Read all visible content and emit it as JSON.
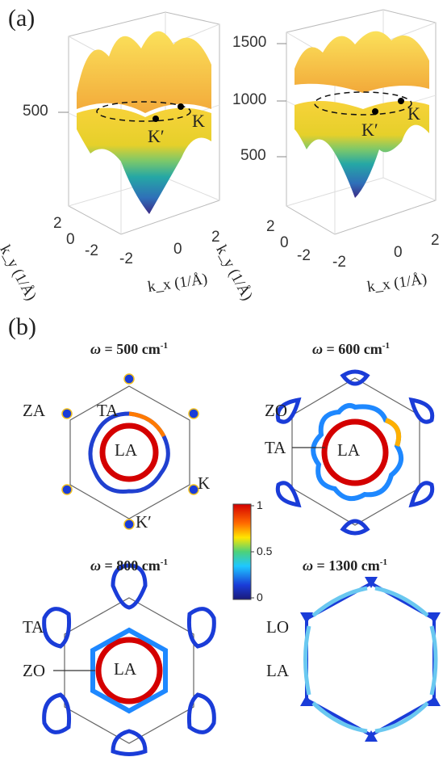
{
  "panel_a": {
    "label": "(a)",
    "left": {
      "ztick": "500",
      "points": [
        "K",
        "K′"
      ],
      "ky_ticks": [
        "2",
        "0",
        "-2"
      ],
      "kx_ticks": [
        "-2",
        "0",
        "2"
      ],
      "ky_label": "k_y (1/Å)",
      "kx_label": "k_x (1/Å)"
    },
    "right": {
      "zticks": [
        "1500",
        "1000",
        "500"
      ],
      "points": [
        "K",
        "K′"
      ],
      "ky_ticks": [
        "2",
        "0",
        "-2"
      ],
      "kx_ticks": [
        "-2",
        "0",
        "2"
      ],
      "ky_label": "k_y (1/Å)",
      "kx_label": "k_x (1/Å)"
    }
  },
  "panel_b": {
    "label": "(b)",
    "maps": [
      {
        "omega": "500",
        "unit": "cm",
        "exp": "-1",
        "labels": [
          "ZA",
          "TA",
          "LA",
          "K",
          "K′"
        ]
      },
      {
        "omega": "600",
        "unit": "cm",
        "exp": "-1",
        "labels": [
          "ZO",
          "TA",
          "LA"
        ]
      },
      {
        "omega": "800",
        "unit": "cm",
        "exp": "-1",
        "labels": [
          "TA",
          "ZO",
          "LA"
        ]
      },
      {
        "omega": "1300",
        "unit": "cm",
        "exp": "-1",
        "labels": [
          "LO",
          "LA"
        ]
      }
    ],
    "colorbar": {
      "ticks": [
        "1",
        "0.5",
        "0"
      ],
      "colors": [
        "#d40000",
        "#ff8c00",
        "#ffe600",
        "#4cd17a",
        "#1ec8ff",
        "#1a3cd8",
        "#1a1a7a"
      ]
    }
  }
}
